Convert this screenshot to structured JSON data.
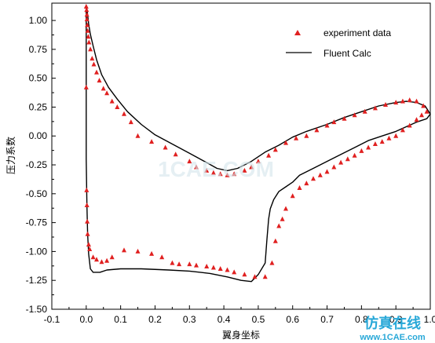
{
  "chart_data": {
    "type": "scatter",
    "xlabel": "翼身坐标",
    "ylabel": "压力系数",
    "xlim": [
      -0.1,
      1.0
    ],
    "ylim": [
      -1.5,
      1.15
    ],
    "x_ticks": [
      "-0.1",
      "0.0",
      "0.1",
      "0.2",
      "0.3",
      "0.4",
      "0.5",
      "0.6",
      "0.7",
      "0.8",
      "0.9",
      "1.0"
    ],
    "y_ticks": [
      "1.00",
      "0.75",
      "0.50",
      "0.25",
      "0.00",
      "-0.25",
      "-0.50",
      "-0.75",
      "-1.00",
      "-1.25",
      "-1.50"
    ],
    "x_tick_values": [
      -0.1,
      0.0,
      0.1,
      0.2,
      0.3,
      0.4,
      0.5,
      0.6,
      0.7,
      0.8,
      0.9,
      1.0
    ],
    "y_tick_values": [
      1.0,
      0.75,
      0.5,
      0.25,
      0.0,
      -0.25,
      -0.5,
      -0.75,
      -1.0,
      -1.25,
      -1.5
    ],
    "legend_position": "top-right",
    "grid": false,
    "colors": {
      "experiment": "#e02020",
      "calc": "#000000"
    },
    "series": [
      {
        "name": "experiment data",
        "kind": "scatter",
        "points": [
          [
            0.0,
            1.12
          ],
          [
            0.001,
            1.09
          ],
          [
            0.002,
            1.05
          ],
          [
            0.002,
            1.01
          ],
          [
            0.003,
            0.96
          ],
          [
            0.004,
            0.91
          ],
          [
            0.006,
            0.86
          ],
          [
            0.008,
            0.81
          ],
          [
            0.012,
            0.75
          ],
          [
            0.017,
            0.67
          ],
          [
            0.022,
            0.62
          ],
          [
            0.03,
            0.55
          ],
          [
            0.038,
            0.48
          ],
          [
            0.05,
            0.41
          ],
          [
            0.06,
            0.37
          ],
          [
            0.075,
            0.3
          ],
          [
            0.09,
            0.25
          ],
          [
            0.11,
            0.19
          ],
          [
            0.13,
            0.12
          ],
          [
            0.15,
            0.0
          ],
          [
            0.19,
            -0.05
          ],
          [
            0.23,
            -0.1
          ],
          [
            0.26,
            -0.16
          ],
          [
            0.3,
            -0.22
          ],
          [
            0.32,
            -0.27
          ],
          [
            0.35,
            -0.3
          ],
          [
            0.37,
            -0.32
          ],
          [
            0.39,
            -0.33
          ],
          [
            0.41,
            -0.34
          ],
          [
            0.43,
            -0.33
          ],
          [
            0.46,
            -0.3
          ],
          [
            0.48,
            -0.27
          ],
          [
            0.5,
            -0.22
          ],
          [
            0.53,
            -0.17
          ],
          [
            0.55,
            -0.12
          ],
          [
            0.58,
            -0.06
          ],
          [
            0.61,
            -0.02
          ],
          [
            0.64,
            0.0
          ],
          [
            0.67,
            0.05
          ],
          [
            0.7,
            0.09
          ],
          [
            0.72,
            0.12
          ],
          [
            0.75,
            0.15
          ],
          [
            0.78,
            0.18
          ],
          [
            0.81,
            0.21
          ],
          [
            0.84,
            0.24
          ],
          [
            0.87,
            0.27
          ],
          [
            0.9,
            0.29
          ],
          [
            0.92,
            0.3
          ],
          [
            0.94,
            0.31
          ],
          [
            0.96,
            0.3
          ],
          [
            0.98,
            0.26
          ],
          [
            0.99,
            0.21
          ],
          [
            0.975,
            0.18
          ],
          [
            0.96,
            0.14
          ],
          [
            0.94,
            0.09
          ],
          [
            0.92,
            0.05
          ],
          [
            0.9,
            0.0
          ],
          [
            0.88,
            -0.02
          ],
          [
            0.86,
            -0.05
          ],
          [
            0.84,
            -0.07
          ],
          [
            0.82,
            -0.1
          ],
          [
            0.8,
            -0.13
          ],
          [
            0.78,
            -0.17
          ],
          [
            0.76,
            -0.2
          ],
          [
            0.74,
            -0.23
          ],
          [
            0.72,
            -0.27
          ],
          [
            0.7,
            -0.31
          ],
          [
            0.68,
            -0.34
          ],
          [
            0.66,
            -0.37
          ],
          [
            0.64,
            -0.41
          ],
          [
            0.62,
            -0.45
          ],
          [
            0.6,
            -0.52
          ],
          [
            0.58,
            -0.63
          ],
          [
            0.57,
            -0.72
          ],
          [
            0.56,
            -0.78
          ],
          [
            0.55,
            -0.91
          ],
          [
            0.54,
            -1.1
          ],
          [
            0.52,
            -1.22
          ],
          [
            0.49,
            -1.22
          ],
          [
            0.46,
            -1.2
          ],
          [
            0.43,
            -1.18
          ],
          [
            0.41,
            -1.16
          ],
          [
            0.39,
            -1.15
          ],
          [
            0.37,
            -1.14
          ],
          [
            0.35,
            -1.13
          ],
          [
            0.32,
            -1.12
          ],
          [
            0.3,
            -1.11
          ],
          [
            0.27,
            -1.11
          ],
          [
            0.25,
            -1.1
          ],
          [
            0.22,
            -1.05
          ],
          [
            0.19,
            -1.02
          ],
          [
            0.15,
            -1.0
          ],
          [
            0.11,
            -0.99
          ],
          [
            0.075,
            -1.05
          ],
          [
            0.06,
            -1.08
          ],
          [
            0.045,
            -1.09
          ],
          [
            0.03,
            -1.07
          ],
          [
            0.02,
            -1.05
          ],
          [
            0.01,
            -0.98
          ],
          [
            0.007,
            -0.94
          ],
          [
            0.004,
            -0.85
          ],
          [
            0.003,
            -0.74
          ],
          [
            0.002,
            -0.6
          ],
          [
            0.001,
            -0.47
          ],
          [
            0.0,
            0.42
          ]
        ]
      },
      {
        "name": "Fluent Calc",
        "kind": "line",
        "points": [
          [
            0.0,
            1.13
          ],
          [
            0.003,
            1.08
          ],
          [
            0.007,
            0.97
          ],
          [
            0.012,
            0.88
          ],
          [
            0.02,
            0.78
          ],
          [
            0.03,
            0.66
          ],
          [
            0.045,
            0.53
          ],
          [
            0.065,
            0.42
          ],
          [
            0.09,
            0.32
          ],
          [
            0.12,
            0.21
          ],
          [
            0.16,
            0.1
          ],
          [
            0.2,
            0.01
          ],
          [
            0.25,
            -0.07
          ],
          [
            0.3,
            -0.15
          ],
          [
            0.35,
            -0.23
          ],
          [
            0.38,
            -0.28
          ],
          [
            0.41,
            -0.3
          ],
          [
            0.44,
            -0.28
          ],
          [
            0.48,
            -0.22
          ],
          [
            0.52,
            -0.14
          ],
          [
            0.56,
            -0.08
          ],
          [
            0.6,
            -0.01
          ],
          [
            0.64,
            0.04
          ],
          [
            0.7,
            0.1
          ],
          [
            0.75,
            0.16
          ],
          [
            0.8,
            0.21
          ],
          [
            0.85,
            0.26
          ],
          [
            0.9,
            0.29
          ],
          [
            0.93,
            0.3
          ],
          [
            0.96,
            0.29
          ],
          [
            0.985,
            0.26
          ],
          [
            1.0,
            0.19
          ],
          [
            0.99,
            0.15
          ],
          [
            0.96,
            0.12
          ],
          [
            0.93,
            0.08
          ],
          [
            0.9,
            0.04
          ],
          [
            0.86,
            0.0
          ],
          [
            0.82,
            -0.04
          ],
          [
            0.78,
            -0.1
          ],
          [
            0.74,
            -0.16
          ],
          [
            0.7,
            -0.22
          ],
          [
            0.66,
            -0.28
          ],
          [
            0.62,
            -0.34
          ],
          [
            0.6,
            -0.4
          ],
          [
            0.58,
            -0.44
          ],
          [
            0.56,
            -0.48
          ],
          [
            0.545,
            -0.55
          ],
          [
            0.535,
            -0.63
          ],
          [
            0.53,
            -0.72
          ],
          [
            0.525,
            -0.9
          ],
          [
            0.52,
            -1.1
          ],
          [
            0.5,
            -1.2
          ],
          [
            0.48,
            -1.26
          ],
          [
            0.45,
            -1.25
          ],
          [
            0.41,
            -1.22
          ],
          [
            0.36,
            -1.19
          ],
          [
            0.3,
            -1.17
          ],
          [
            0.24,
            -1.16
          ],
          [
            0.16,
            -1.15
          ],
          [
            0.1,
            -1.15
          ],
          [
            0.06,
            -1.16
          ],
          [
            0.04,
            -1.18
          ],
          [
            0.02,
            -1.18
          ],
          [
            0.012,
            -1.15
          ],
          [
            0.007,
            -1.02
          ],
          [
            0.004,
            -0.85
          ],
          [
            0.002,
            -0.6
          ],
          [
            0.0,
            -0.2
          ],
          [
            0.0,
            0.3
          ],
          [
            0.0,
            0.8
          ],
          [
            0.0,
            1.13
          ]
        ]
      }
    ]
  },
  "legend": {
    "experiment_label": "experiment data",
    "calc_label": "Fluent Calc"
  },
  "watermark": {
    "center_text": "1CAE.COM",
    "brand_text": "仿真在线",
    "url_text": "www.1CAE.com"
  }
}
